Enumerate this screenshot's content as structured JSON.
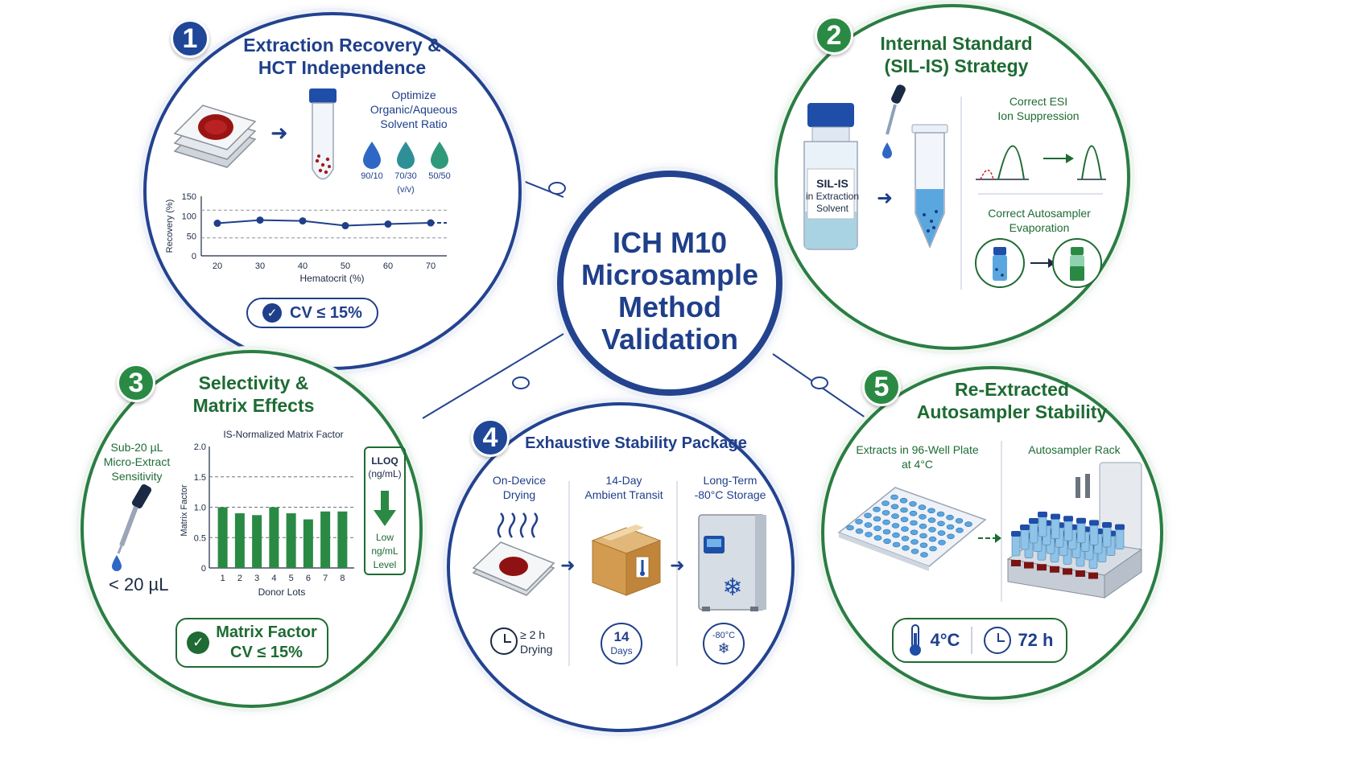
{
  "center": {
    "title_lines": [
      "ICH M10",
      "Microsample",
      "Method",
      "Validation"
    ]
  },
  "panel1": {
    "number": "1",
    "title_lines": [
      "Extraction Recovery &",
      "HCT Independence"
    ],
    "solvent_label_lines": [
      "Optimize",
      "Organic/Aqueous",
      "Solvent Ratio"
    ],
    "solvent_ratios": [
      "90/10",
      "70/30",
      "50/50"
    ],
    "solvent_unit": "(v/v)",
    "result_label": "CV ≤ 15%"
  },
  "panel2": {
    "number": "2",
    "title_lines": [
      "Internal Standard",
      "(SIL-IS) Strategy"
    ],
    "vial_label_lines": [
      "SIL-IS",
      "in Extraction",
      "Solvent"
    ],
    "esi_label_lines": [
      "Correct ESI",
      "Ion Suppression"
    ],
    "evap_label_lines": [
      "Correct Autosampler",
      "Evaporation"
    ]
  },
  "panel3": {
    "number": "3",
    "title_lines": [
      "Selectivity &",
      "Matrix Effects"
    ],
    "sensitivity_label_lines": [
      "Sub-20 µL",
      "Micro-Extract",
      "Sensitivity"
    ],
    "volume_label": "< 20 µL",
    "lloq_label_lines": [
      "LLOQ",
      "(ng/mL)"
    ],
    "lloq_level_lines": [
      "Low",
      "ng/mL",
      "Level"
    ],
    "result_label_lines": [
      "Matrix Factor",
      "CV ≤ 15%"
    ]
  },
  "panel4": {
    "number": "4",
    "title": "Exhaustive Stability Package",
    "steps": [
      {
        "label_lines": [
          "On-Device",
          "Drying"
        ],
        "badge_lines": [
          "≥ 2 h",
          "Drying"
        ]
      },
      {
        "label_lines": [
          "14-Day",
          "Ambient Transit"
        ],
        "badge_lines": [
          "14",
          "Days"
        ]
      },
      {
        "label_lines": [
          "Long-Term",
          "-80°C Storage"
        ],
        "badge_lines": [
          "-80°C"
        ]
      }
    ]
  },
  "panel5": {
    "number": "5",
    "title_lines": [
      "Re-Extracted",
      "Autosampler Stability"
    ],
    "plate_label_lines": [
      "Extracts in 96-Well Plate",
      "at 4°C"
    ],
    "rack_label": "Autosampler Rack",
    "temp_label": "4°C",
    "time_label": "72 h"
  },
  "colors": {
    "blue": "#1f3f8a",
    "green": "#1e6b33",
    "green_bar": "#2a8a44"
  },
  "chart_data": [
    {
      "type": "line",
      "title": "",
      "xlabel": "Hematocrit (%)",
      "ylabel": "Recovery (%)",
      "x": [
        20,
        30,
        40,
        50,
        60,
        70
      ],
      "series": [
        {
          "values": [
            82,
            90,
            88,
            76,
            80,
            83
          ]
        }
      ],
      "xlim": [
        20,
        70
      ],
      "ylim": [
        0,
        150
      ],
      "xticks": [
        20,
        30,
        40,
        50,
        60,
        70
      ],
      "yticks": [
        0,
        50,
        100,
        150
      ],
      "reference_lines": [
        115,
        45
      ]
    },
    {
      "type": "bar",
      "title": "IS-Normalized Matrix Factor",
      "xlabel": "Donor Lots",
      "ylabel": "Matrix Factor",
      "categories": [
        "1",
        "2",
        "3",
        "4",
        "5",
        "6",
        "7",
        "8"
      ],
      "values": [
        1.0,
        0.9,
        0.87,
        1.0,
        0.9,
        0.8,
        0.93,
        0.93
      ],
      "ylim": [
        0,
        2.0
      ],
      "yticks": [
        "0",
        "0.5",
        "1.0",
        "1.5",
        "2.0"
      ],
      "reference_lines": [
        0.5,
        1.0,
        1.5
      ]
    }
  ]
}
